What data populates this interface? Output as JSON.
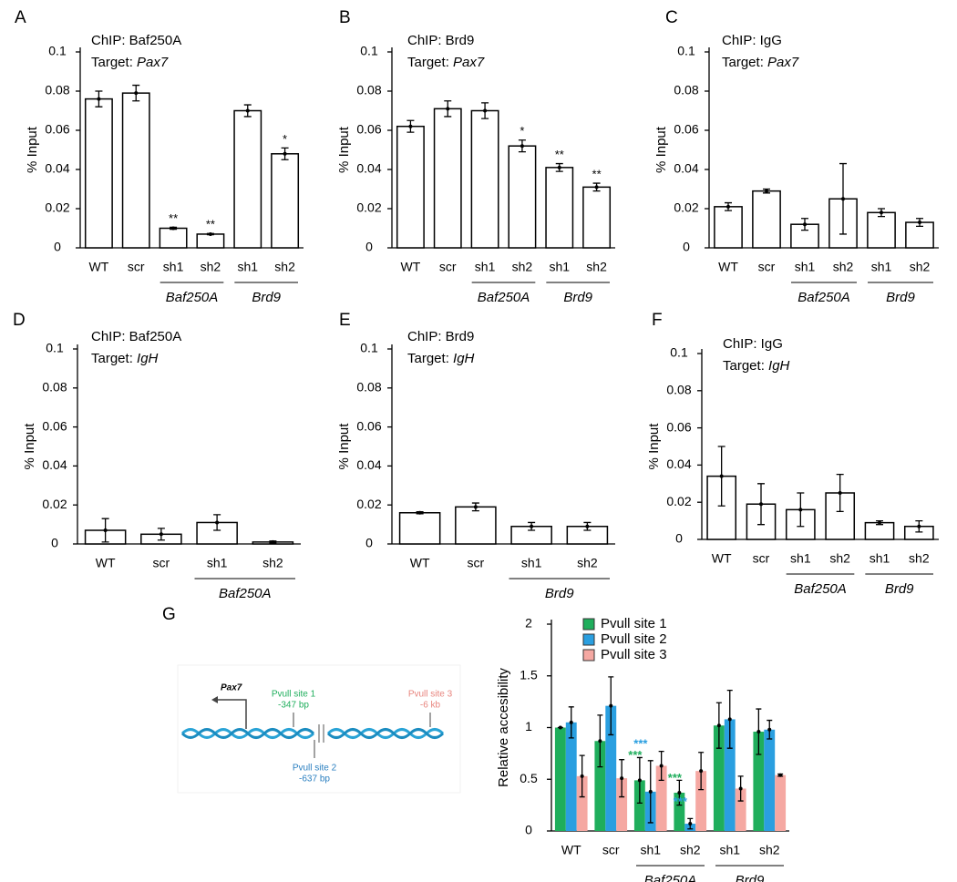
{
  "chart_data": [
    {
      "type": "bar",
      "panel": "A",
      "title": "ChIP: Baf250A",
      "target_label": "Target:",
      "target": "Pax7",
      "y_label": "% Input",
      "categories": [
        "WT",
        "scr",
        "sh1",
        "sh2",
        "sh1",
        "sh2"
      ],
      "category_group": [
        null,
        null,
        "Baf250A",
        "Baf250A",
        "Brd9",
        "Brd9"
      ],
      "values": [
        0.076,
        0.079,
        0.01,
        0.007,
        0.07,
        0.048
      ],
      "errors": [
        0.004,
        0.004,
        0.0005,
        0.0003,
        0.003,
        0.003
      ],
      "annotations": [
        null,
        null,
        "**",
        "**",
        null,
        "*"
      ],
      "color": "#ffffff",
      "ylim": [
        0,
        0.1
      ],
      "yticks": [
        0,
        0.02,
        0.04,
        0.06,
        0.08,
        0.1
      ]
    },
    {
      "type": "bar",
      "panel": "B",
      "title": "ChIP: Brd9",
      "target_label": "Target:",
      "target": "Pax7",
      "y_label": "% Input",
      "categories": [
        "WT",
        "scr",
        "sh1",
        "sh2",
        "sh1",
        "sh2"
      ],
      "category_group": [
        null,
        null,
        "Baf250A",
        "Baf250A",
        "Brd9",
        "Brd9"
      ],
      "values": [
        0.062,
        0.071,
        0.07,
        0.052,
        0.041,
        0.031
      ],
      "errors": [
        0.003,
        0.004,
        0.004,
        0.003,
        0.002,
        0.002
      ],
      "annotations": [
        null,
        null,
        null,
        "*",
        "**",
        "**"
      ],
      "color": "#ffffff",
      "ylim": [
        0,
        0.1
      ],
      "yticks": [
        0,
        0.02,
        0.04,
        0.06,
        0.08,
        0.1
      ]
    },
    {
      "type": "bar",
      "panel": "C",
      "title": "ChIP: IgG",
      "target_label": "Target:",
      "target": "Pax7",
      "y_label": "% Input",
      "categories": [
        "WT",
        "scr",
        "sh1",
        "sh2",
        "sh1",
        "sh2"
      ],
      "category_group": [
        null,
        null,
        "Baf250A",
        "Baf250A",
        "Brd9",
        "Brd9"
      ],
      "values": [
        0.021,
        0.029,
        0.012,
        0.025,
        0.018,
        0.013
      ],
      "errors": [
        0.002,
        0.001,
        0.003,
        0.018,
        0.002,
        0.002
      ],
      "color": "#ffffff",
      "ylim": [
        0,
        0.1
      ],
      "yticks": [
        0,
        0.02,
        0.04,
        0.06,
        0.08,
        0.1
      ]
    },
    {
      "type": "bar",
      "panel": "D",
      "title": "ChIP: Baf250A",
      "target_label": "Target:",
      "target": "IgH",
      "y_label": "% Input",
      "categories": [
        "WT",
        "scr",
        "sh1",
        "sh2"
      ],
      "category_group": [
        null,
        null,
        "Baf250A",
        "Baf250A"
      ],
      "values": [
        0.007,
        0.005,
        0.011,
        0.001
      ],
      "errors": [
        0.006,
        0.003,
        0.004,
        0.0005
      ],
      "color": "#ffffff",
      "ylim": [
        0,
        0.1
      ],
      "yticks": [
        0,
        0.02,
        0.04,
        0.06,
        0.08,
        0.1
      ]
    },
    {
      "type": "bar",
      "panel": "E",
      "title": "ChIP: Brd9",
      "target_label": "Target:",
      "target": "IgH",
      "y_label": "% Input",
      "categories": [
        "WT",
        "scr",
        "sh1",
        "sh2"
      ],
      "category_group": [
        null,
        null,
        "Brd9",
        "Brd9"
      ],
      "values": [
        0.016,
        0.019,
        0.009,
        0.009
      ],
      "errors": [
        0.0005,
        0.002,
        0.002,
        0.002
      ],
      "color": "#ffffff",
      "ylim": [
        0,
        0.1
      ],
      "yticks": [
        0,
        0.02,
        0.04,
        0.06,
        0.08,
        0.1
      ]
    },
    {
      "type": "bar",
      "panel": "F",
      "title": "ChIP: IgG",
      "target_label": "Target:",
      "target": "IgH",
      "y_label": "% Input",
      "categories": [
        "WT",
        "scr",
        "sh1",
        "sh2",
        "sh1",
        "sh2"
      ],
      "category_group": [
        null,
        null,
        "Baf250A",
        "Baf250A",
        "Brd9",
        "Brd9"
      ],
      "values": [
        0.034,
        0.019,
        0.016,
        0.025,
        0.009,
        0.007
      ],
      "errors": [
        0.016,
        0.011,
        0.009,
        0.01,
        0.001,
        0.003
      ],
      "color": "#ffffff",
      "ylim": [
        0,
        0.1
      ],
      "yticks": [
        0,
        0.02,
        0.04,
        0.06,
        0.08,
        0.1
      ]
    },
    {
      "type": "bar",
      "panel": "G",
      "y_label": "Relative accesibility",
      "categories": [
        "WT",
        "scr",
        "sh1",
        "sh2",
        "sh1",
        "sh2"
      ],
      "category_group": [
        null,
        null,
        "Baf250A",
        "Baf250A",
        "Brd9",
        "Brd9"
      ],
      "series": [
        {
          "name": "Pvull site 1",
          "color": "#1fae5c",
          "values": [
            1.0,
            0.87,
            0.49,
            0.37,
            1.02,
            0.96
          ],
          "errors": [
            0,
            0.25,
            0.22,
            0.12,
            0.22,
            0.22
          ],
          "annotations": [
            null,
            null,
            "***",
            "***",
            null,
            null
          ]
        },
        {
          "name": "Pvull site 2",
          "color": "#2a9fe0",
          "values": [
            1.05,
            1.21,
            0.38,
            0.07,
            1.08,
            0.98
          ],
          "errors": [
            0.15,
            0.28,
            0.3,
            0.05,
            0.28,
            0.09
          ],
          "annotations": [
            null,
            null,
            "***",
            "***",
            null,
            null
          ]
        },
        {
          "name": "Pvull site 3",
          "color": "#f5a8a2",
          "values": [
            0.53,
            0.51,
            0.63,
            0.58,
            0.41,
            0.54
          ],
          "errors": [
            0.2,
            0.18,
            0.14,
            0.18,
            0.12,
            0.01
          ]
        }
      ],
      "ylim": [
        0,
        2
      ],
      "yticks": [
        0,
        0.5,
        1,
        1.5,
        2
      ]
    }
  ],
  "diagram": {
    "gene": "Pax7",
    "site1": "Pvull site 1",
    "site1_pos": "-347 bp",
    "site2": "Pvull site 2",
    "site2_pos": "-637 bp",
    "site3": "Pvull site 3",
    "site3_pos": "-6 kb"
  }
}
